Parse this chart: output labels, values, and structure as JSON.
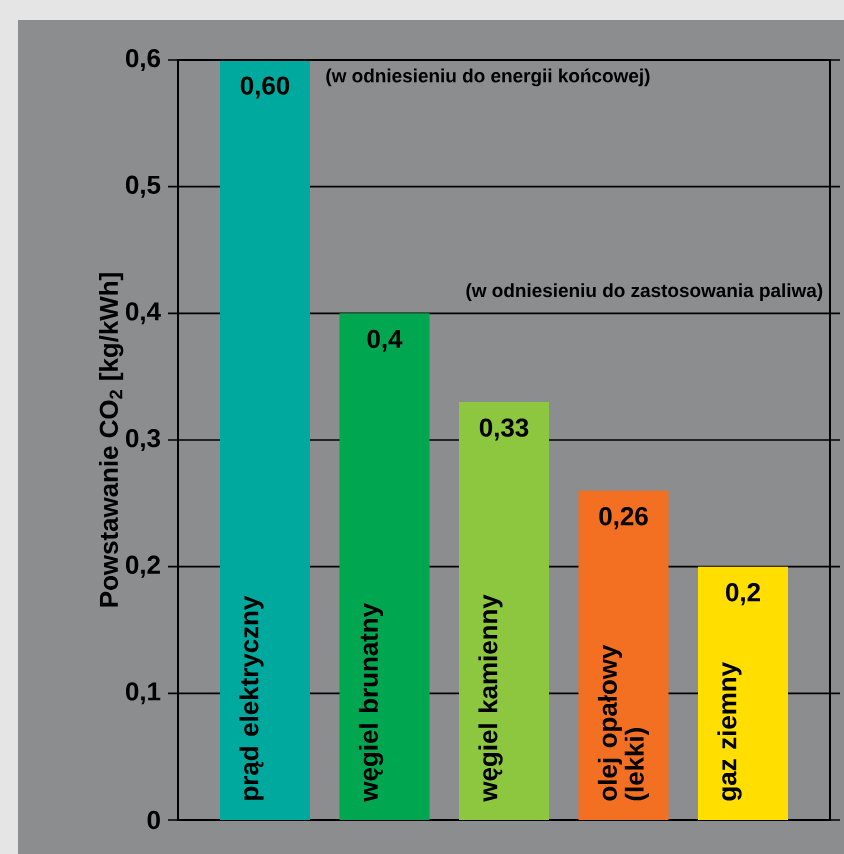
{
  "chart_data": {
    "type": "bar",
    "ylabel": "Powstawanie CO$_{2}$ [kg/kWh]",
    "categories": [
      "prąd elektryczny",
      "węgiel brunatny",
      "węgiel kamienny",
      "olej opałowy (lekki)",
      "gaz ziemny"
    ],
    "values": [
      0.6,
      0.4,
      0.33,
      0.26,
      0.2
    ],
    "colors": [
      "#00a99d",
      "#00a650",
      "#8dc63f",
      "#f36f21",
      "#ffde00"
    ],
    "value_labels": [
      "0,60",
      "0,4",
      "0,33",
      "0,26",
      "0,2"
    ],
    "ylim": [
      0,
      0.6
    ],
    "yticks": [
      0,
      {
        "value": 0.1,
        "label": "0,1"
      },
      {
        "value": 0.2,
        "label": "0,2"
      },
      {
        "value": 0.3,
        "label": "0,3"
      },
      {
        "value": 0.4,
        "label": "0,4"
      },
      {
        "value": 0.5,
        "label": "0,5"
      },
      {
        "value": 0.6,
        "label": "0,6"
      }
    ],
    "grid": "y",
    "annotations": [
      "(w odniesieniu do energii końcowej)",
      "(w odniesieniu do zastosowania paliwa)"
    ]
  }
}
